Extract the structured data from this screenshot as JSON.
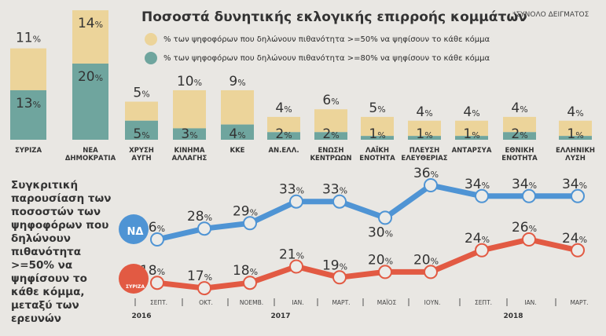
{
  "title": "Ποσοστά δυνητικής εκλογικής επιρροής κομμάτων",
  "note": "*ΣΥΝΟΛΟ ΔΕΙΓΜΑΤΟΣ",
  "side_text": "Συγκριτική παρουσίαση των ποσοστών των ψηφοφόρων που δηλώνουν πιθανότητα >=50% να ψηφίσουν το κάθε κόμμα, μεταξύ των ερευνών",
  "chart_data": [
    {
      "type": "bar",
      "stacked": true,
      "legend": [
        {
          "label": "% των ψηφοφόρων που δηλώνουν πιθανότητα >=50% να ψηφίσουν το κάθε κόμμα",
          "color": "#ecd49a"
        },
        {
          "label": "% των ψηφοφόρων που δηλώνουν πιθανότητα >=80% να ψηφίσουν το κάθε κόμμα",
          "color": "#6fa59e"
        }
      ],
      "categories": [
        [
          "ΣΥΡΙΖΑ"
        ],
        [
          "ΝΕΑ",
          "ΔΗΜΟΚΡΑΤΙΑ"
        ],
        [
          "ΧΡΥΣΗ",
          "ΑΥΓΗ"
        ],
        [
          "ΚΙΝΗΜΑ",
          "ΑΛΛΑΓΗΣ"
        ],
        [
          "ΚΚΕ"
        ],
        [
          "ΑΝ.ΕΛΛ."
        ],
        [
          "ΕΝΩΣΗ",
          "ΚΕΝΤΡΩΩΝ"
        ],
        [
          "ΛΑΪΚΗ",
          "ΕΝΟΤΗΤΑ"
        ],
        [
          "ΠΛΕΥΣΗ",
          "ΕΛΕΥΘΕΡΙΑΣ"
        ],
        [
          "ΑΝΤΑΡΣΥΑ"
        ],
        [
          "ΕΘΝΙΚΗ",
          "ΕΝΟΤΗΤΑ"
        ],
        [
          "ΕΛΛΗΝΙΚΗ",
          "ΛΥΣΗ"
        ]
      ],
      "series": [
        {
          "values": [
            11,
            14,
            5,
            10,
            9,
            4,
            6,
            5,
            4,
            4,
            4,
            4
          ]
        },
        {
          "values": [
            13,
            20,
            5,
            3,
            4,
            2,
            2,
            1,
            1,
            1,
            2,
            1
          ]
        }
      ]
    },
    {
      "type": "line",
      "x": [
        "ΣΕΠΤ.",
        "ΟΚΤ.",
        "ΝΟΕΜΒ.",
        "ΙΑΝ.",
        "ΜΑΡΤ.",
        "ΜΑΪΟΣ",
        "ΙΟΥΝ.",
        "ΣΕΠΤ.",
        "ΙΑΝ.",
        "ΜΑΡΤ."
      ],
      "years": [
        {
          "label": "2016",
          "at": 0
        },
        {
          "label": "2017",
          "at": 3
        },
        {
          "label": "2018",
          "at": 8
        }
      ],
      "series": [
        {
          "name": "ΝΔ",
          "color": "#4f94d4",
          "values": [
            26,
            28,
            29,
            33,
            33,
            30,
            36,
            34,
            34,
            34
          ]
        },
        {
          "name": "ΣΥΡΙΖΑ",
          "color": "#e25a43",
          "values": [
            18,
            17,
            18,
            21,
            19,
            20,
            20,
            24,
            26,
            24
          ]
        }
      ]
    }
  ]
}
